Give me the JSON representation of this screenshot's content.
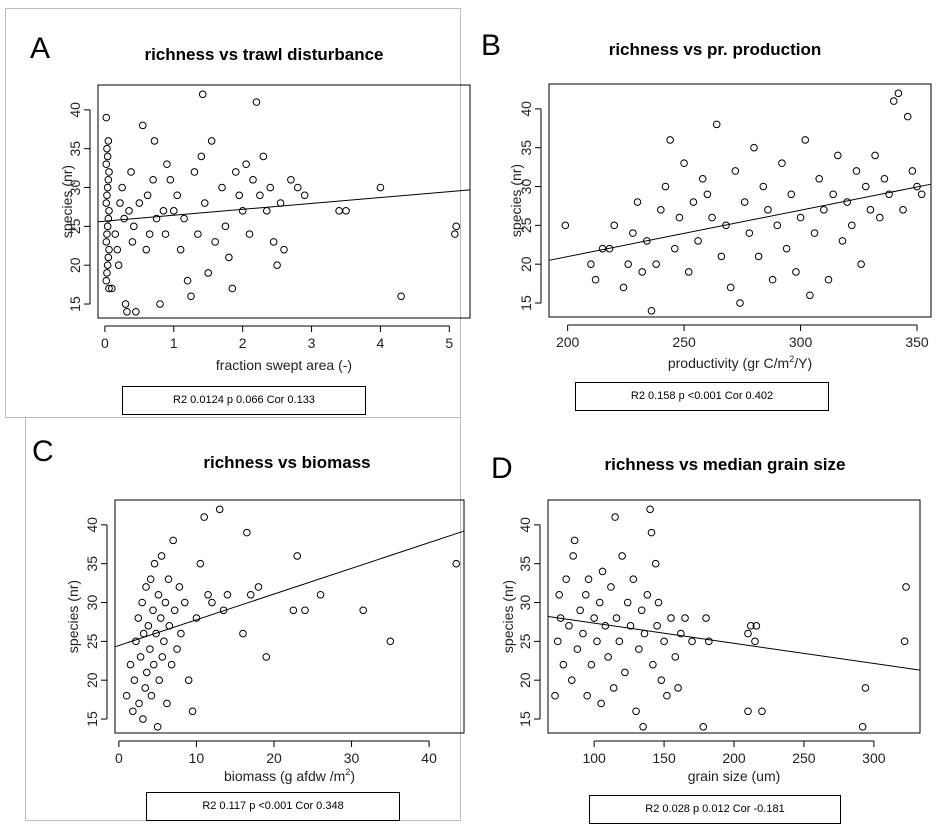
{
  "chart_data": [
    {
      "type": "scatter",
      "panel_label": "A",
      "title": "richness vs trawl disturbance",
      "xlabel": "fraction swept area (-)",
      "ylabel": "species (nr)",
      "xlim": [
        -0.1,
        5.3
      ],
      "ylim": [
        13.2,
        43.2
      ],
      "xticks": [
        0,
        1,
        2,
        3,
        4,
        5
      ],
      "xtick_labels": [
        "0",
        "1",
        "2",
        "3",
        "4",
        "5"
      ],
      "yticks": [
        15,
        20,
        25,
        30,
        35,
        40
      ],
      "ytick_labels": [
        "15",
        "20",
        "25",
        "30",
        "35",
        "40"
      ],
      "grid": false,
      "fit_line": [
        [
          -0.1,
          25.6
        ],
        [
          5.3,
          29.7
        ]
      ],
      "stat_text": "R2 0.0124 p 0.066 Cor 0.133",
      "points": [
        [
          0.02,
          39
        ],
        [
          0.05,
          36
        ],
        [
          0.03,
          35
        ],
        [
          0.04,
          34
        ],
        [
          0.02,
          33
        ],
        [
          0.06,
          32
        ],
        [
          0.05,
          31
        ],
        [
          0.04,
          30
        ],
        [
          0.03,
          29
        ],
        [
          0.02,
          28
        ],
        [
          0.06,
          27
        ],
        [
          0.05,
          26
        ],
        [
          0.04,
          25
        ],
        [
          0.03,
          24
        ],
        [
          0.02,
          23
        ],
        [
          0.06,
          22
        ],
        [
          0.05,
          21
        ],
        [
          0.04,
          20
        ],
        [
          0.03,
          19
        ],
        [
          0.02,
          18
        ],
        [
          0.06,
          17
        ],
        [
          0.1,
          17
        ],
        [
          0.15,
          24
        ],
        [
          0.18,
          22
        ],
        [
          0.2,
          20
        ],
        [
          0.22,
          28
        ],
        [
          0.25,
          30
        ],
        [
          0.28,
          26
        ],
        [
          0.3,
          15
        ],
        [
          0.32,
          14
        ],
        [
          0.35,
          27
        ],
        [
          0.38,
          32
        ],
        [
          0.4,
          23
        ],
        [
          0.42,
          25
        ],
        [
          0.45,
          14
        ],
        [
          0.5,
          28
        ],
        [
          0.55,
          38
        ],
        [
          0.6,
          22
        ],
        [
          0.62,
          29
        ],
        [
          0.65,
          24
        ],
        [
          0.7,
          31
        ],
        [
          0.72,
          36
        ],
        [
          0.75,
          26
        ],
        [
          0.8,
          15
        ],
        [
          0.85,
          27
        ],
        [
          0.88,
          24
        ],
        [
          0.9,
          33
        ],
        [
          0.95,
          31
        ],
        [
          1.0,
          27
        ],
        [
          1.05,
          29
        ],
        [
          1.1,
          22
        ],
        [
          1.15,
          26
        ],
        [
          1.2,
          18
        ],
        [
          1.25,
          16
        ],
        [
          1.3,
          32
        ],
        [
          1.35,
          24
        ],
        [
          1.4,
          34
        ],
        [
          1.42,
          42
        ],
        [
          1.45,
          28
        ],
        [
          1.5,
          19
        ],
        [
          1.55,
          36
        ],
        [
          1.6,
          23
        ],
        [
          1.7,
          30
        ],
        [
          1.75,
          25
        ],
        [
          1.8,
          21
        ],
        [
          1.85,
          17
        ],
        [
          1.9,
          32
        ],
        [
          1.95,
          29
        ],
        [
          2.0,
          27
        ],
        [
          2.05,
          33
        ],
        [
          2.1,
          24
        ],
        [
          2.15,
          31
        ],
        [
          2.2,
          41
        ],
        [
          2.25,
          29
        ],
        [
          2.3,
          34
        ],
        [
          2.35,
          27
        ],
        [
          2.4,
          30
        ],
        [
          2.45,
          23
        ],
        [
          2.5,
          20
        ],
        [
          2.55,
          28
        ],
        [
          2.6,
          22
        ],
        [
          2.7,
          31
        ],
        [
          2.8,
          30
        ],
        [
          2.9,
          29
        ],
        [
          3.4,
          27
        ],
        [
          3.5,
          27
        ],
        [
          4.0,
          30
        ],
        [
          4.3,
          16
        ],
        [
          5.08,
          24
        ],
        [
          5.1,
          25
        ]
      ]
    },
    {
      "type": "scatter",
      "panel_label": "B",
      "title": "richness vs pr. production",
      "xlabel_text": "productivity (gr C/m",
      "xlabel_sup": "2",
      "xlabel_tail": "/Y)",
      "ylabel": "species (nr)",
      "xlim": [
        192,
        356
      ],
      "ylim": [
        13.2,
        43.2
      ],
      "xticks": [
        200,
        250,
        300,
        350
      ],
      "xtick_labels": [
        "200",
        "250",
        "300",
        "350"
      ],
      "yticks": [
        15,
        20,
        25,
        30,
        35,
        40
      ],
      "ytick_labels": [
        "15",
        "20",
        "25",
        "30",
        "35",
        "40"
      ],
      "grid": false,
      "fit_line": [
        [
          192,
          20.5
        ],
        [
          356,
          30.3
        ]
      ],
      "stat_text": "R2 0.158 p <0.001 Cor 0.402",
      "points": [
        [
          199,
          25
        ],
        [
          210,
          20
        ],
        [
          212,
          18
        ],
        [
          215,
          22
        ],
        [
          218,
          22
        ],
        [
          220,
          25
        ],
        [
          224,
          17
        ],
        [
          226,
          20
        ],
        [
          228,
          24
        ],
        [
          230,
          28
        ],
        [
          232,
          19
        ],
        [
          234,
          23
        ],
        [
          236,
          14
        ],
        [
          238,
          20
        ],
        [
          240,
          27
        ],
        [
          242,
          30
        ],
        [
          244,
          36
        ],
        [
          246,
          22
        ],
        [
          248,
          26
        ],
        [
          250,
          33
        ],
        [
          252,
          19
        ],
        [
          254,
          28
        ],
        [
          256,
          23
        ],
        [
          258,
          31
        ],
        [
          260,
          29
        ],
        [
          262,
          26
        ],
        [
          264,
          38
        ],
        [
          266,
          21
        ],
        [
          268,
          25
        ],
        [
          270,
          17
        ],
        [
          272,
          32
        ],
        [
          274,
          15
        ],
        [
          276,
          28
        ],
        [
          278,
          24
        ],
        [
          280,
          35
        ],
        [
          282,
          21
        ],
        [
          284,
          30
        ],
        [
          286,
          27
        ],
        [
          288,
          18
        ],
        [
          290,
          25
        ],
        [
          292,
          33
        ],
        [
          294,
          22
        ],
        [
          296,
          29
        ],
        [
          298,
          19
        ],
        [
          300,
          26
        ],
        [
          302,
          36
        ],
        [
          304,
          16
        ],
        [
          306,
          24
        ],
        [
          308,
          31
        ],
        [
          310,
          27
        ],
        [
          312,
          18
        ],
        [
          314,
          29
        ],
        [
          316,
          34
        ],
        [
          318,
          23
        ],
        [
          320,
          28
        ],
        [
          322,
          25
        ],
        [
          324,
          32
        ],
        [
          326,
          20
        ],
        [
          328,
          30
        ],
        [
          330,
          27
        ],
        [
          332,
          34
        ],
        [
          334,
          26
        ],
        [
          336,
          31
        ],
        [
          338,
          29
        ],
        [
          340,
          41
        ],
        [
          342,
          42
        ],
        [
          344,
          27
        ],
        [
          346,
          39
        ],
        [
          348,
          32
        ],
        [
          350,
          30
        ],
        [
          352,
          29
        ]
      ]
    },
    {
      "type": "scatter",
      "panel_label": "C",
      "title": "richness vs biomass",
      "xlabel_text": "biomass (g afdw /m",
      "xlabel_sup": "2",
      "xlabel_tail": ")",
      "ylabel": "species (nr)",
      "xlim": [
        -0.5,
        44.5
      ],
      "ylim": [
        13.2,
        43.2
      ],
      "xticks": [
        0,
        10,
        20,
        30,
        40
      ],
      "xtick_labels": [
        "0",
        "10",
        "20",
        "30",
        "40"
      ],
      "yticks": [
        15,
        20,
        25,
        30,
        35,
        40
      ],
      "ytick_labels": [
        "15",
        "20",
        "25",
        "30",
        "35",
        "40"
      ],
      "grid": false,
      "fit_line": [
        [
          -0.5,
          24.3
        ],
        [
          44.5,
          39.2
        ]
      ],
      "stat_text": "R2 0.117 p <0.001 Cor 0.348",
      "points": [
        [
          1.0,
          18
        ],
        [
          1.5,
          22
        ],
        [
          1.8,
          16
        ],
        [
          2.0,
          20
        ],
        [
          2.2,
          25
        ],
        [
          2.5,
          28
        ],
        [
          2.6,
          17
        ],
        [
          2.8,
          23
        ],
        [
          3.0,
          30
        ],
        [
          3.1,
          15
        ],
        [
          3.2,
          26
        ],
        [
          3.4,
          19
        ],
        [
          3.5,
          32
        ],
        [
          3.6,
          21
        ],
        [
          3.8,
          27
        ],
        [
          4.0,
          24
        ],
        [
          4.1,
          33
        ],
        [
          4.2,
          18
        ],
        [
          4.4,
          29
        ],
        [
          4.5,
          22
        ],
        [
          4.6,
          35
        ],
        [
          4.8,
          26
        ],
        [
          5.0,
          14
        ],
        [
          5.1,
          31
        ],
        [
          5.2,
          20
        ],
        [
          5.4,
          28
        ],
        [
          5.5,
          36
        ],
        [
          5.6,
          23
        ],
        [
          5.8,
          25
        ],
        [
          6.0,
          30
        ],
        [
          6.2,
          17
        ],
        [
          6.4,
          33
        ],
        [
          6.5,
          27
        ],
        [
          6.8,
          22
        ],
        [
          7.0,
          38
        ],
        [
          7.2,
          29
        ],
        [
          7.5,
          24
        ],
        [
          7.8,
          32
        ],
        [
          8.0,
          26
        ],
        [
          8.5,
          30
        ],
        [
          9.0,
          20
        ],
        [
          9.5,
          16
        ],
        [
          10.0,
          28
        ],
        [
          10.5,
          35
        ],
        [
          11.0,
          41
        ],
        [
          11.5,
          31
        ],
        [
          12.0,
          30
        ],
        [
          13.0,
          42
        ],
        [
          13.5,
          29
        ],
        [
          14.0,
          31
        ],
        [
          16.0,
          26
        ],
        [
          16.5,
          39
        ],
        [
          17.0,
          31
        ],
        [
          18.0,
          32
        ],
        [
          19.0,
          23
        ],
        [
          22.5,
          29
        ],
        [
          23.0,
          36
        ],
        [
          24.0,
          29
        ],
        [
          26.0,
          31
        ],
        [
          31.5,
          29
        ],
        [
          35.0,
          25
        ],
        [
          43.5,
          35
        ]
      ]
    },
    {
      "type": "scatter",
      "panel_label": "D",
      "title": "richness vs median grain size",
      "xlabel": "grain size (um)",
      "ylabel": "species (nr)",
      "xlim": [
        67,
        333
      ],
      "ylim": [
        13.2,
        43.2
      ],
      "xticks": [
        100,
        150,
        200,
        250,
        300
      ],
      "xtick_labels": [
        "100",
        "150",
        "200",
        "250",
        "300"
      ],
      "yticks": [
        15,
        20,
        25,
        30,
        35,
        40
      ],
      "ytick_labels": [
        "15",
        "20",
        "25",
        "30",
        "35",
        "40"
      ],
      "grid": false,
      "fit_line": [
        [
          67,
          28.2
        ],
        [
          333,
          21.3
        ]
      ],
      "stat_text": "R2 0.028 p 0.012 Cor -0.181",
      "points": [
        [
          72,
          18
        ],
        [
          74,
          25
        ],
        [
          75,
          31
        ],
        [
          76,
          28
        ],
        [
          78,
          22
        ],
        [
          80,
          33
        ],
        [
          82,
          27
        ],
        [
          84,
          20
        ],
        [
          85,
          36
        ],
        [
          86,
          38
        ],
        [
          88,
          24
        ],
        [
          90,
          29
        ],
        [
          92,
          26
        ],
        [
          94,
          31
        ],
        [
          95,
          18
        ],
        [
          96,
          33
        ],
        [
          98,
          22
        ],
        [
          100,
          28
        ],
        [
          102,
          25
        ],
        [
          104,
          30
        ],
        [
          105,
          17
        ],
        [
          106,
          34
        ],
        [
          108,
          27
        ],
        [
          110,
          23
        ],
        [
          112,
          32
        ],
        [
          114,
          19
        ],
        [
          115,
          41
        ],
        [
          116,
          28
        ],
        [
          118,
          25
        ],
        [
          120,
          36
        ],
        [
          122,
          21
        ],
        [
          124,
          30
        ],
        [
          126,
          27
        ],
        [
          128,
          33
        ],
        [
          130,
          16
        ],
        [
          132,
          24
        ],
        [
          134,
          29
        ],
        [
          135,
          14
        ],
        [
          136,
          26
        ],
        [
          138,
          31
        ],
        [
          140,
          42
        ],
        [
          141,
          39
        ],
        [
          142,
          22
        ],
        [
          144,
          35
        ],
        [
          145,
          27
        ],
        [
          146,
          30
        ],
        [
          148,
          20
        ],
        [
          150,
          25
        ],
        [
          152,
          18
        ],
        [
          155,
          28
        ],
        [
          158,
          23
        ],
        [
          160,
          19
        ],
        [
          162,
          26
        ],
        [
          165,
          28
        ],
        [
          170,
          25
        ],
        [
          178,
          14
        ],
        [
          180,
          28
        ],
        [
          182,
          25
        ],
        [
          210,
          16
        ],
        [
          210,
          26
        ],
        [
          212,
          27
        ],
        [
          215,
          25
        ],
        [
          216,
          27
        ],
        [
          220,
          16
        ],
        [
          292,
          14
        ],
        [
          294,
          19
        ],
        [
          322,
          25
        ],
        [
          323,
          32
        ]
      ]
    }
  ]
}
